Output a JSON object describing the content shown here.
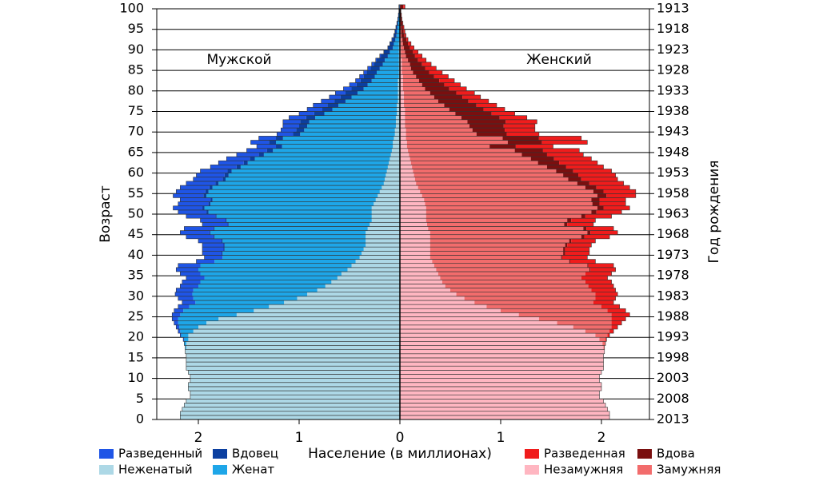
{
  "chart_data": {
    "type": "bar",
    "orientation": "horizontal-population-pyramid",
    "xlabel": "Население (в миллионах)",
    "ylabel_left": "Возраст",
    "ylabel_right": "Год рождения",
    "panel_left_title": "Мужской",
    "panel_right_title": "Женский",
    "xlim": [
      -2.4,
      2.4
    ],
    "x_tick_values": [
      -2,
      -1,
      0,
      1,
      2
    ],
    "x_tick_labels": [
      "2",
      "1",
      "0",
      "1",
      "2"
    ],
    "age_range": [
      0,
      100
    ],
    "age_tick_labels": [
      "0",
      "5",
      "10",
      "15",
      "20",
      "25",
      "30",
      "35",
      "40",
      "45",
      "50",
      "55",
      "60",
      "65",
      "70",
      "75",
      "80",
      "85",
      "90",
      "95",
      "100"
    ],
    "birth_year_tick_labels": [
      "2013",
      "2008",
      "2003",
      "1998",
      "1993",
      "1988",
      "1983",
      "1978",
      "1973",
      "1968",
      "1963",
      "1958",
      "1953",
      "1948",
      "1943",
      "1938",
      "1933",
      "1928",
      "1923",
      "1918",
      "1913"
    ],
    "grid": "horizontal",
    "age_step": 1,
    "categories_male": [
      "Неженатый",
      "Женат",
      "Вдовец",
      "Разведенный"
    ],
    "categories_female": [
      "Незамужняя",
      "Замужняя",
      "Вдова",
      "Разведенная"
    ],
    "male_totals_millions": [
      2.18,
      2.18,
      2.16,
      2.14,
      2.12,
      2.08,
      2.08,
      2.1,
      2.1,
      2.08,
      2.08,
      2.1,
      2.12,
      2.12,
      2.12,
      2.12,
      2.13,
      2.13,
      2.14,
      2.15,
      2.18,
      2.2,
      2.22,
      2.24,
      2.26,
      2.26,
      2.24,
      2.2,
      2.16,
      2.2,
      2.23,
      2.22,
      2.18,
      2.16,
      2.12,
      2.18,
      2.22,
      2.2,
      2.02,
      1.94,
      1.96,
      1.96,
      1.96,
      2.0,
      2.12,
      2.18,
      2.14,
      1.96,
      1.98,
      2.12,
      2.2,
      2.25,
      2.2,
      2.18,
      2.25,
      2.22,
      2.18,
      2.12,
      2.05,
      2.02,
      1.98,
      1.88,
      1.8,
      1.72,
      1.62,
      1.52,
      1.42,
      1.48,
      1.4,
      1.22,
      1.18,
      1.16,
      1.16,
      1.1,
      1.0,
      0.92,
      0.86,
      0.78,
      0.7,
      0.64,
      0.56,
      0.5,
      0.44,
      0.4,
      0.36,
      0.32,
      0.28,
      0.24,
      0.2,
      0.16,
      0.12,
      0.1,
      0.08,
      0.06,
      0.05,
      0.04,
      0.03,
      0.02,
      0.015,
      0.01,
      0.01
    ],
    "male_unmarried_millions": [
      2.18,
      2.18,
      2.16,
      2.14,
      2.12,
      2.08,
      2.08,
      2.1,
      2.1,
      2.08,
      2.08,
      2.1,
      2.12,
      2.12,
      2.12,
      2.12,
      2.13,
      2.12,
      2.12,
      2.1,
      2.1,
      2.05,
      2.0,
      1.92,
      1.8,
      1.62,
      1.45,
      1.3,
      1.15,
      1.02,
      0.92,
      0.82,
      0.74,
      0.68,
      0.62,
      0.58,
      0.52,
      0.48,
      0.44,
      0.4,
      0.38,
      0.36,
      0.34,
      0.34,
      0.34,
      0.34,
      0.32,
      0.3,
      0.28,
      0.28,
      0.28,
      0.28,
      0.26,
      0.24,
      0.22,
      0.2,
      0.18,
      0.16,
      0.15,
      0.14,
      0.13,
      0.12,
      0.11,
      0.1,
      0.09,
      0.08,
      0.07,
      0.07,
      0.06,
      0.05,
      0.05,
      0.04,
      0.04,
      0.04,
      0.03,
      0.03,
      0.03,
      0.02,
      0.02,
      0.02,
      0.02,
      0.02,
      0.02,
      0.01,
      0.01,
      0.01,
      0.01,
      0.01,
      0.01,
      0.01,
      0.01,
      0.01,
      0.005,
      0.005,
      0.005,
      0.005,
      0.003,
      0.002,
      0.001,
      0.001,
      0.001
    ],
    "male_married_millions": [
      0,
      0,
      0,
      0,
      0,
      0,
      0,
      0,
      0,
      0,
      0,
      0,
      0,
      0,
      0,
      0,
      0,
      0.01,
      0.02,
      0.04,
      0.07,
      0.13,
      0.19,
      0.28,
      0.4,
      0.56,
      0.7,
      0.79,
      0.88,
      1.03,
      1.14,
      1.23,
      1.26,
      1.3,
      1.32,
      1.4,
      1.48,
      1.5,
      1.4,
      1.36,
      1.38,
      1.38,
      1.4,
      1.42,
      1.5,
      1.54,
      1.52,
      1.4,
      1.44,
      1.54,
      1.62,
      1.66,
      1.62,
      1.62,
      1.7,
      1.7,
      1.68,
      1.64,
      1.58,
      1.56,
      1.54,
      1.46,
      1.4,
      1.34,
      1.26,
      1.18,
      1.1,
      1.16,
      1.1,
      0.94,
      0.9,
      0.88,
      0.86,
      0.8,
      0.72,
      0.64,
      0.58,
      0.52,
      0.46,
      0.4,
      0.34,
      0.3,
      0.26,
      0.24,
      0.22,
      0.19,
      0.16,
      0.14,
      0.11,
      0.09,
      0.06,
      0.05,
      0.04,
      0.03,
      0.025,
      0.02,
      0.015,
      0.01,
      0.007,
      0.004,
      0.004
    ],
    "male_widowed_millions": [
      0,
      0,
      0,
      0,
      0,
      0,
      0,
      0,
      0,
      0,
      0,
      0,
      0,
      0,
      0,
      0,
      0,
      0,
      0,
      0,
      0,
      0,
      0,
      0,
      0,
      0,
      0,
      0,
      0,
      0,
      0,
      0,
      0,
      0,
      0,
      0,
      0,
      0,
      0,
      0,
      0.01,
      0.01,
      0.01,
      0.01,
      0.01,
      0.01,
      0.01,
      0.01,
      0.01,
      0.01,
      0.02,
      0.02,
      0.02,
      0.02,
      0.03,
      0.03,
      0.03,
      0.03,
      0.03,
      0.04,
      0.04,
      0.04,
      0.04,
      0.05,
      0.05,
      0.06,
      0.06,
      0.07,
      0.07,
      0.07,
      0.08,
      0.08,
      0.09,
      0.09,
      0.1,
      0.1,
      0.11,
      0.11,
      0.11,
      0.12,
      0.12,
      0.11,
      0.11,
      0.11,
      0.1,
      0.09,
      0.09,
      0.08,
      0.07,
      0.06,
      0.05,
      0.04,
      0.03,
      0.025,
      0.02,
      0.015,
      0.012,
      0.009,
      0.006,
      0.004,
      0.004
    ],
    "female_totals_millions": [
      2.08,
      2.08,
      2.06,
      2.04,
      2.02,
      1.98,
      1.98,
      2.0,
      2.0,
      1.98,
      1.98,
      2.0,
      2.02,
      2.02,
      2.02,
      2.02,
      2.03,
      2.03,
      2.04,
      2.05,
      2.08,
      2.12,
      2.16,
      2.2,
      2.24,
      2.28,
      2.24,
      2.18,
      2.12,
      2.14,
      2.16,
      2.14,
      2.12,
      2.1,
      2.06,
      2.1,
      2.14,
      2.12,
      1.94,
      1.86,
      1.88,
      1.88,
      1.9,
      1.94,
      2.08,
      2.16,
      2.12,
      1.92,
      1.94,
      2.1,
      2.2,
      2.28,
      2.24,
      2.24,
      2.34,
      2.34,
      2.28,
      2.22,
      2.16,
      2.14,
      2.1,
      2.02,
      1.96,
      1.9,
      1.82,
      1.78,
      1.52,
      1.86,
      1.8,
      1.38,
      1.34,
      1.34,
      1.36,
      1.26,
      1.14,
      1.04,
      0.96,
      0.88,
      0.8,
      0.74,
      0.66,
      0.6,
      0.54,
      0.48,
      0.42,
      0.36,
      0.31,
      0.26,
      0.22,
      0.18,
      0.14,
      0.11,
      0.08,
      0.06,
      0.05,
      0.04,
      0.03,
      0.02,
      0.015,
      0.01,
      0.05
    ],
    "female_unmarried_millions": [
      2.08,
      2.08,
      2.06,
      2.04,
      2.02,
      1.98,
      1.98,
      2.0,
      2.0,
      1.98,
      1.98,
      2.0,
      2.02,
      2.02,
      2.02,
      2.02,
      2.03,
      2.02,
      2.01,
      1.98,
      1.94,
      1.84,
      1.72,
      1.56,
      1.38,
      1.18,
      1.0,
      0.86,
      0.74,
      0.64,
      0.56,
      0.5,
      0.45,
      0.42,
      0.4,
      0.38,
      0.36,
      0.34,
      0.32,
      0.3,
      0.3,
      0.3,
      0.3,
      0.3,
      0.3,
      0.3,
      0.28,
      0.27,
      0.26,
      0.26,
      0.26,
      0.26,
      0.25,
      0.24,
      0.22,
      0.2,
      0.18,
      0.16,
      0.15,
      0.14,
      0.13,
      0.12,
      0.11,
      0.1,
      0.09,
      0.08,
      0.07,
      0.07,
      0.06,
      0.06,
      0.06,
      0.05,
      0.05,
      0.05,
      0.05,
      0.05,
      0.04,
      0.04,
      0.04,
      0.04,
      0.03,
      0.03,
      0.03,
      0.03,
      0.02,
      0.02,
      0.02,
      0.02,
      0.01,
      0.01,
      0.01,
      0.01,
      0.01,
      0.005,
      0.005,
      0.005,
      0.004,
      0.003,
      0.002,
      0.001,
      0.001
    ],
    "female_married_millions": [
      0,
      0,
      0,
      0,
      0,
      0,
      0,
      0,
      0,
      0,
      0,
      0,
      0,
      0,
      0,
      0,
      0,
      0.01,
      0.03,
      0.06,
      0.12,
      0.24,
      0.38,
      0.54,
      0.72,
      0.92,
      1.06,
      1.14,
      1.18,
      1.3,
      1.38,
      1.4,
      1.42,
      1.42,
      1.4,
      1.46,
      1.52,
      1.52,
      1.36,
      1.3,
      1.32,
      1.32,
      1.34,
      1.38,
      1.5,
      1.56,
      1.54,
      1.36,
      1.4,
      1.54,
      1.64,
      1.7,
      1.66,
      1.66,
      1.74,
      1.72,
      1.66,
      1.6,
      1.52,
      1.48,
      1.42,
      1.34,
      1.26,
      1.2,
      1.12,
      1.06,
      0.82,
      1.0,
      0.96,
      0.7,
      0.66,
      0.64,
      0.62,
      0.56,
      0.5,
      0.44,
      0.4,
      0.34,
      0.3,
      0.26,
      0.22,
      0.19,
      0.16,
      0.13,
      0.11,
      0.09,
      0.08,
      0.06,
      0.05,
      0.04,
      0.03,
      0.02,
      0.015,
      0.01,
      0.008,
      0.006,
      0.004,
      0.003,
      0.002,
      0.001,
      0.002
    ],
    "female_widowed_millions": [
      0,
      0,
      0,
      0,
      0,
      0,
      0,
      0,
      0,
      0,
      0,
      0,
      0,
      0,
      0,
      0,
      0,
      0,
      0,
      0,
      0,
      0,
      0,
      0,
      0,
      0,
      0,
      0,
      0,
      0,
      0,
      0,
      0,
      0,
      0,
      0,
      0.01,
      0.01,
      0.01,
      0.01,
      0.02,
      0.02,
      0.02,
      0.02,
      0.03,
      0.03,
      0.03,
      0.03,
      0.04,
      0.04,
      0.05,
      0.06,
      0.07,
      0.08,
      0.09,
      0.1,
      0.11,
      0.12,
      0.13,
      0.15,
      0.17,
      0.19,
      0.21,
      0.23,
      0.25,
      0.28,
      0.26,
      0.34,
      0.36,
      0.3,
      0.32,
      0.34,
      0.38,
      0.38,
      0.36,
      0.34,
      0.32,
      0.3,
      0.28,
      0.26,
      0.24,
      0.22,
      0.2,
      0.18,
      0.16,
      0.14,
      0.12,
      0.1,
      0.09,
      0.08,
      0.06,
      0.05,
      0.04,
      0.03,
      0.025,
      0.02,
      0.018,
      0.012,
      0.009,
      0.006,
      0.03
    ]
  },
  "legend": {
    "items": [
      {
        "label": "Разведенный",
        "color": "#1f55e6"
      },
      {
        "label": "Вдовец",
        "color": "#0b3fa0"
      },
      {
        "label": "Неженатый",
        "color": "#add8e6"
      },
      {
        "label": "Женат",
        "color": "#1ea6e8"
      },
      {
        "label": "Разведенная",
        "color": "#f01c1c"
      },
      {
        "label": "Вдова",
        "color": "#7a0f0f"
      },
      {
        "label": "Незамужняя",
        "color": "#ffb6c1"
      },
      {
        "label": "Замужняя",
        "color": "#f26c6c"
      }
    ]
  },
  "colors": {
    "male_unmarried": "#add8e6",
    "male_married": "#1ea6e8",
    "male_widowed": "#0b3fa0",
    "male_divorced": "#1f55e6",
    "female_unmarried": "#ffb6c1",
    "female_married": "#f26c6c",
    "female_widowed": "#7a0f0f",
    "female_divorced": "#f01c1c"
  }
}
